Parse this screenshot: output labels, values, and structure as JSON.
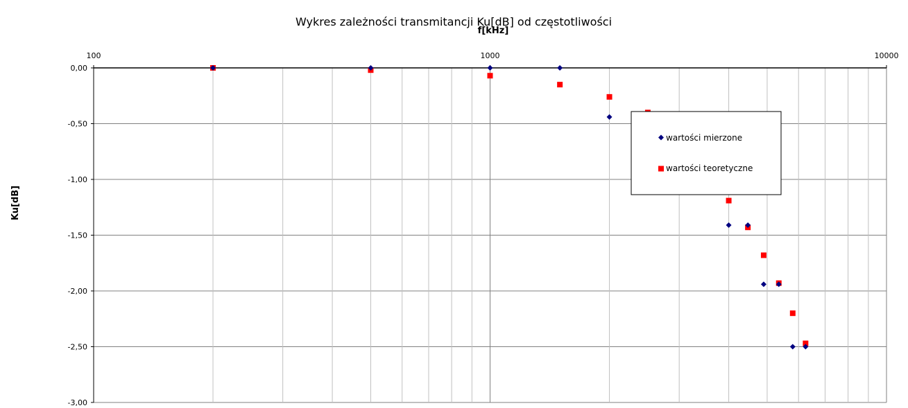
{
  "chart_data": {
    "type": "scatter",
    "title": "Wykres zależności transmitancji Ku[dB] od częstotliwości",
    "xlabel": "f[kHz]",
    "ylabel": "Ku[dB]",
    "x_scale": "log",
    "xlim": [
      100,
      10000
    ],
    "ylim": [
      -3.0,
      0.0
    ],
    "x_ticks": [
      "100",
      "1000",
      "10000"
    ],
    "y_ticks": [
      "0,00",
      "-0,50",
      "-1,00",
      "-1,50",
      "-2,00",
      "-2,50",
      "-3,00"
    ],
    "grid": true,
    "legend_position": "right",
    "series": [
      {
        "name": "wartości mierzone",
        "marker": "diamond",
        "color": "#000080",
        "points": [
          {
            "x": 200,
            "y": 0.0
          },
          {
            "x": 500,
            "y": 0.0
          },
          {
            "x": 1000,
            "y": 0.0
          },
          {
            "x": 1500,
            "y": 0.0
          },
          {
            "x": 2000,
            "y": -0.44
          },
          {
            "x": 4000,
            "y": -1.41
          },
          {
            "x": 4470,
            "y": -1.41
          },
          {
            "x": 4900,
            "y": -1.94
          },
          {
            "x": 5350,
            "y": -1.94
          },
          {
            "x": 5800,
            "y": -2.5
          },
          {
            "x": 6250,
            "y": -2.5
          }
        ]
      },
      {
        "name": "wartości teoretyczne",
        "marker": "square",
        "color": "#ff0000",
        "points": [
          {
            "x": 200,
            "y": 0.0
          },
          {
            "x": 500,
            "y": -0.02
          },
          {
            "x": 1000,
            "y": -0.07
          },
          {
            "x": 1500,
            "y": -0.15
          },
          {
            "x": 2000,
            "y": -0.26
          },
          {
            "x": 2500,
            "y": -0.4
          },
          {
            "x": 4000,
            "y": -1.19
          },
          {
            "x": 4470,
            "y": -1.43
          },
          {
            "x": 4900,
            "y": -1.68
          },
          {
            "x": 5350,
            "y": -1.93
          },
          {
            "x": 5800,
            "y": -2.2
          },
          {
            "x": 6250,
            "y": -2.47
          }
        ]
      }
    ]
  }
}
